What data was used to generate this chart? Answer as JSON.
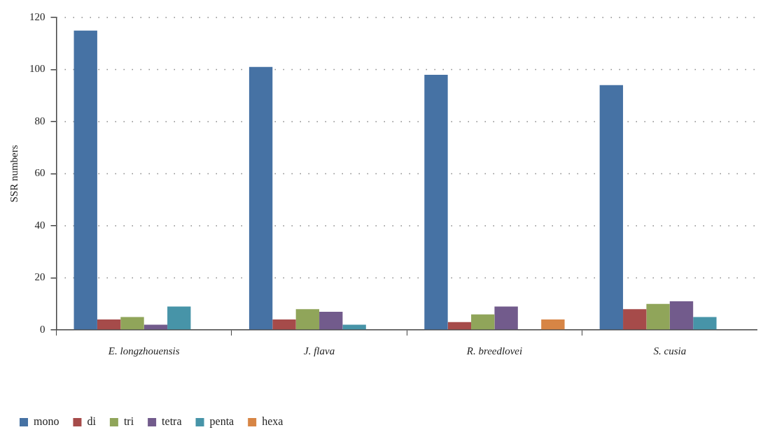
{
  "chart_data": {
    "type": "bar",
    "ylabel": "SSR numbers",
    "categories": [
      "E. longzhouensis",
      "J. flava",
      "R. breedlovei",
      "S. cusia"
    ],
    "series": [
      {
        "name": "mono",
        "color": "#4672a4",
        "values": [
          115,
          101,
          98,
          94
        ]
      },
      {
        "name": "di",
        "color": "#a64b4a",
        "values": [
          4,
          4,
          3,
          8
        ]
      },
      {
        "name": "tri",
        "color": "#90a55a",
        "values": [
          5,
          8,
          6,
          10
        ]
      },
      {
        "name": "tetra",
        "color": "#725b8c",
        "values": [
          2,
          7,
          9,
          11
        ]
      },
      {
        "name": "penta",
        "color": "#4794a8",
        "values": [
          9,
          2,
          0,
          5
        ]
      },
      {
        "name": "hexa",
        "color": "#d78545",
        "values": [
          0,
          0,
          4,
          0
        ]
      }
    ],
    "ylim": [
      0,
      120
    ],
    "yticks": [
      0,
      20,
      40,
      60,
      80,
      100,
      120
    ],
    "grid": "y",
    "legend": "bottom left"
  }
}
